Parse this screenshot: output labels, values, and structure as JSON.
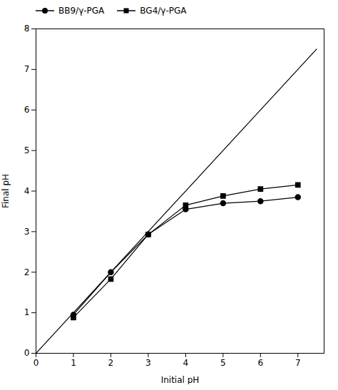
{
  "chart_data": {
    "type": "line",
    "xlabel": "Initial pH",
    "ylabel": "Final pH",
    "x": [
      1,
      2,
      3,
      4,
      5,
      6,
      7
    ],
    "series": [
      {
        "name": "BB9/γ-PGA",
        "color": "#000000",
        "marker": "circle",
        "values": [
          0.95,
          2.0,
          2.93,
          3.55,
          3.7,
          3.75,
          3.85
        ]
      },
      {
        "name": "BG4/γ-PGA",
        "color": "#000000",
        "marker": "square",
        "values": [
          0.88,
          1.83,
          2.93,
          3.65,
          3.88,
          4.05,
          4.15
        ]
      }
    ],
    "diagonal": {
      "x": [
        0,
        7.5
      ],
      "y": [
        0,
        7.5
      ],
      "color": "#000000"
    },
    "xlim": [
      0,
      7.7
    ],
    "ylim": [
      0,
      8
    ],
    "xticks": [
      0,
      1,
      2,
      3,
      4,
      5,
      6,
      7
    ],
    "yticks": [
      0,
      1,
      2,
      3,
      4,
      5,
      6,
      7,
      8
    ],
    "grid": false,
    "legend": "upper left"
  }
}
